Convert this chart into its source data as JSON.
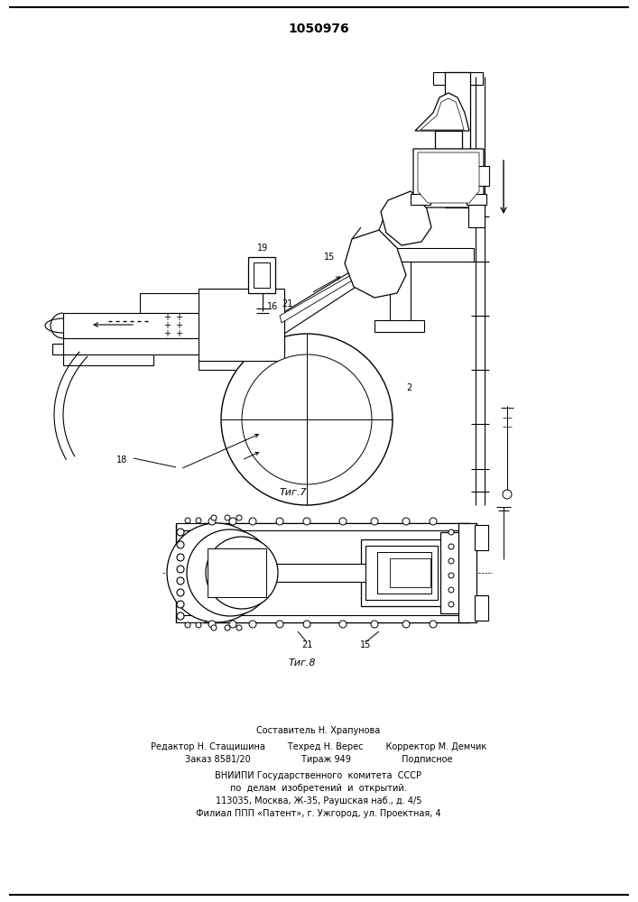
{
  "title": "1050976",
  "footer_lines": [
    "Составитель Н. Храпунова",
    "Редактор Н. Стащишина        Техред Н. Верес        Корректор М. Демчик",
    "Заказ 8581/20                  Тираж 949                  Подписное",
    "ВНИИПИ Государственного  комитета  СССР",
    "по  делам  изобретений  и  открытий.",
    "113035, Москва, Ж-35, Раушская наб., д. 4/5",
    "Филиал ППП «Патент», г. Ужгород, ул. Проектная, 4"
  ],
  "bg_color": "#ffffff"
}
